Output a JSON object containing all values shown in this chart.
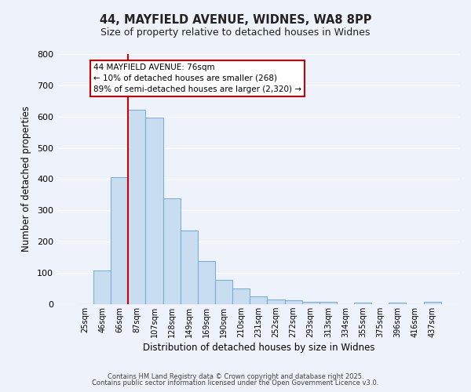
{
  "title": "44, MAYFIELD AVENUE, WIDNES, WA8 8PP",
  "subtitle": "Size of property relative to detached houses in Widnes",
  "xlabel": "Distribution of detached houses by size in Widnes",
  "ylabel": "Number of detached properties",
  "categories": [
    "25sqm",
    "46sqm",
    "66sqm",
    "87sqm",
    "107sqm",
    "128sqm",
    "149sqm",
    "169sqm",
    "190sqm",
    "210sqm",
    "231sqm",
    "252sqm",
    "272sqm",
    "293sqm",
    "313sqm",
    "334sqm",
    "355sqm",
    "375sqm",
    "396sqm",
    "416sqm",
    "437sqm"
  ],
  "bar_values": [
    0,
    107,
    405,
    621,
    596,
    337,
    236,
    138,
    78,
    49,
    25,
    15,
    13,
    7,
    7,
    0,
    5,
    0,
    5,
    0,
    8
  ],
  "bar_color": "#c9ddf0",
  "bar_edge_color": "#7bafd4",
  "ylim": [
    0,
    800
  ],
  "yticks": [
    0,
    100,
    200,
    300,
    400,
    500,
    600,
    700,
    800
  ],
  "vline_x": 2.5,
  "vline_color": "#cc0000",
  "annotation_title": "44 MAYFIELD AVENUE: 76sqm",
  "annotation_line1": "← 10% of detached houses are smaller (268)",
  "annotation_line2": "89% of semi-detached houses are larger (2,320) →",
  "annotation_box_color": "#ffffff",
  "annotation_box_edge": "#cc0000",
  "background_color": "#eef2fb",
  "grid_color": "#ffffff",
  "footer1": "Contains HM Land Registry data © Crown copyright and database right 2025.",
  "footer2": "Contains public sector information licensed under the Open Government Licence v3.0."
}
